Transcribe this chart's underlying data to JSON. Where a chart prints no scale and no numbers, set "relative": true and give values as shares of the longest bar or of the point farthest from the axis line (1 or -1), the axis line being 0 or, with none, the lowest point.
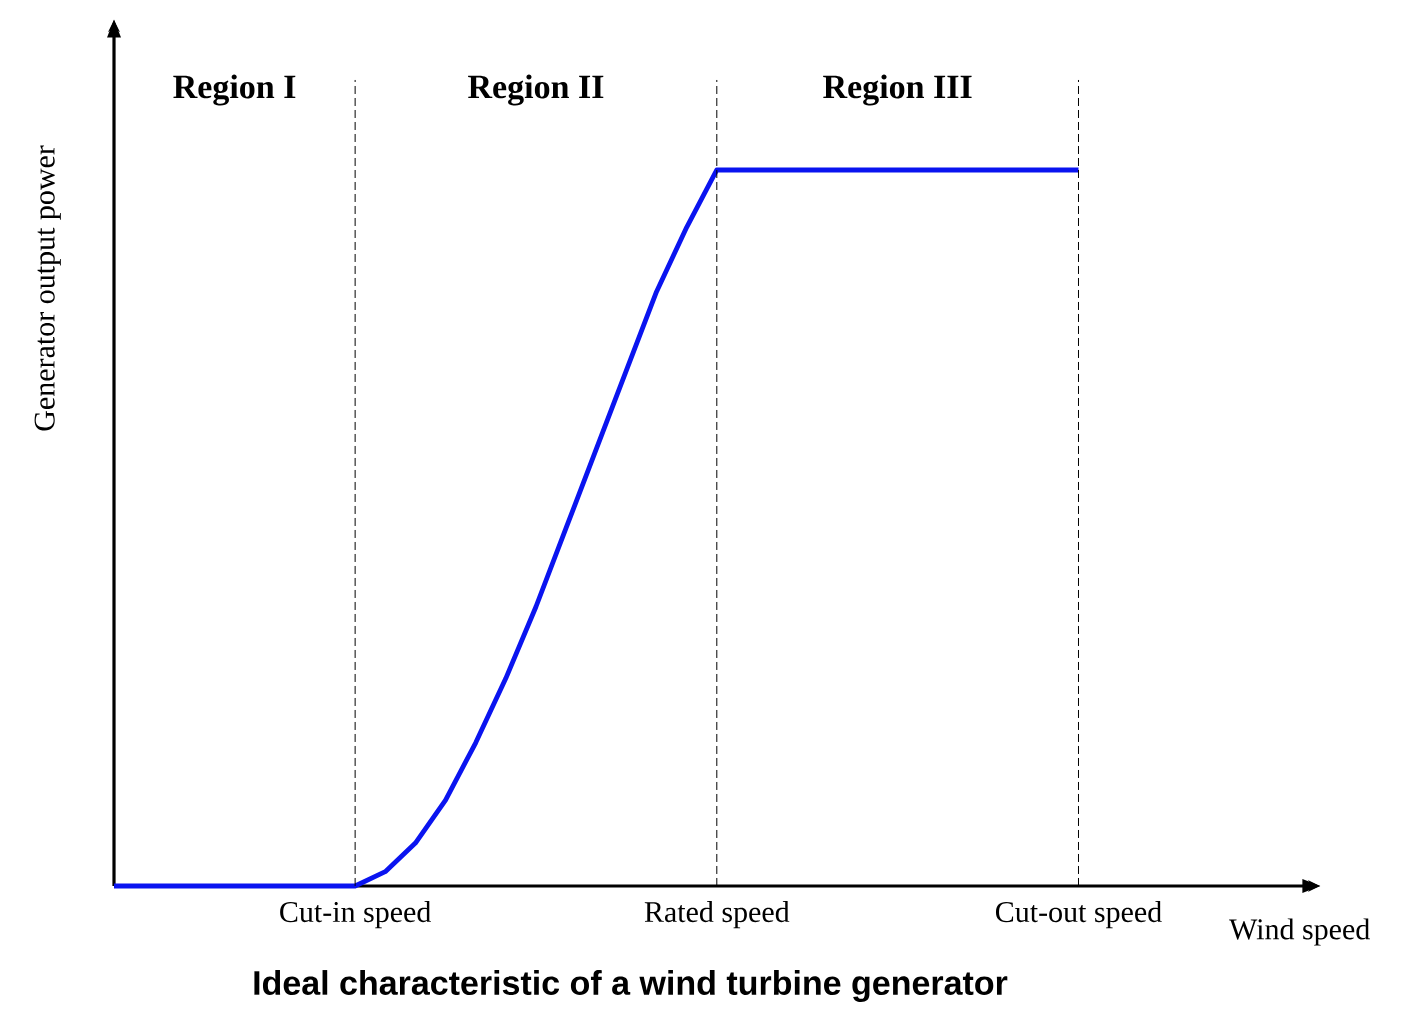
{
  "chart_data": {
    "type": "line",
    "relative": true,
    "title": "Ideal characteristic of a wind turbine generator",
    "xlabel": "Wind speed",
    "ylabel": "Generator output power",
    "categories": [
      null,
      null,
      null,
      null,
      null,
      null,
      null,
      null,
      "Cut-in speed",
      null,
      null,
      null,
      null,
      null,
      null,
      null,
      null,
      null,
      null,
      null,
      "Rated speed",
      null,
      null,
      null,
      null,
      null,
      null,
      null,
      null,
      null,
      null,
      null,
      "Cut-out speed"
    ],
    "series": [
      {
        "color": "#0a14f0",
        "values": [
          0,
          0,
          0,
          0,
          0,
          0,
          0,
          0,
          0,
          0.02,
          0.06,
          0.12,
          0.2,
          0.29,
          0.39,
          0.5,
          0.61,
          0.72,
          0.83,
          0.92,
          1,
          1,
          1,
          1,
          1,
          1,
          1,
          1,
          1,
          1,
          1,
          1,
          1
        ]
      }
    ],
    "ref_lines": [
      {
        "axis": "x",
        "value": "Cut-in speed",
        "line_style": "dashed",
        "color": "#000000"
      },
      {
        "axis": "x",
        "value": "Rated speed",
        "line_style": "dashed",
        "color": "#000000"
      },
      {
        "axis": "x",
        "value": "Cut-out speed",
        "line_style": "dashed",
        "color": "#000000"
      }
    ],
    "annotations": [
      "Region I",
      "Region II",
      "Region III"
    ]
  }
}
